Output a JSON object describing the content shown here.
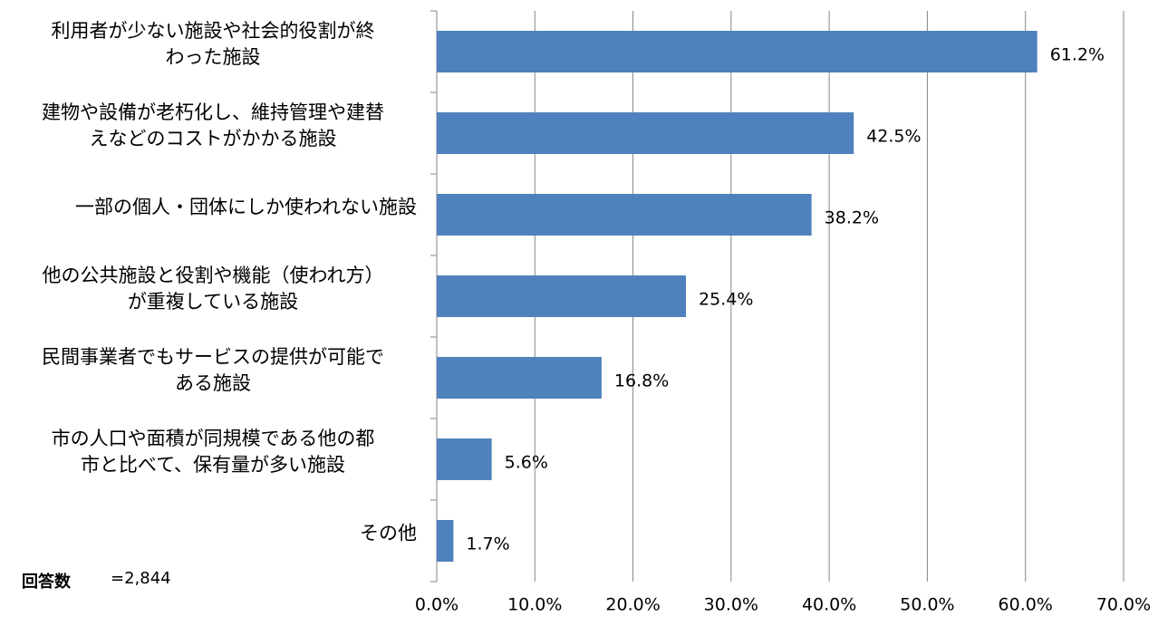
{
  "chart_data": {
    "type": "barh",
    "categories": [
      "利用者が少ない施設や社会的役割が終\nわった施設",
      "建物や設備が老朽化し、維持管理や建替\nえなどのコストがかかる施設",
      "一部の個人・団体にしか使われない施設",
      "他の公共施設と役割や機能（使われ方）\nが重複している施設",
      "民間事業者でもサービスの提供が可能で\nある施設",
      "市の人口や面積が同規模である他の都\n市と比べて、保有量が多い施設",
      "その他"
    ],
    "values": [
      61.2,
      42.5,
      38.2,
      25.4,
      16.8,
      5.6,
      1.7
    ],
    "value_labels": [
      "61.2%",
      "42.5%",
      "38.2%",
      "25.4%",
      "16.8%",
      "5.6%",
      "1.7%"
    ],
    "color": "#4f81bd",
    "xlim": [
      0,
      70
    ],
    "xticks": [
      {
        "value": 0,
        "label": "0.0%"
      },
      {
        "value": 10,
        "label": "10.0%"
      },
      {
        "value": 20,
        "label": "20.0%"
      },
      {
        "value": 30,
        "label": "30.0%"
      },
      {
        "value": 40,
        "label": "40.0%"
      },
      {
        "value": 50,
        "label": "50.0%"
      },
      {
        "value": 60,
        "label": "60.0%"
      },
      {
        "value": 70,
        "label": "70.0%"
      }
    ],
    "grid": true,
    "note_label": "回答数",
    "note_value": "=2,844"
  }
}
